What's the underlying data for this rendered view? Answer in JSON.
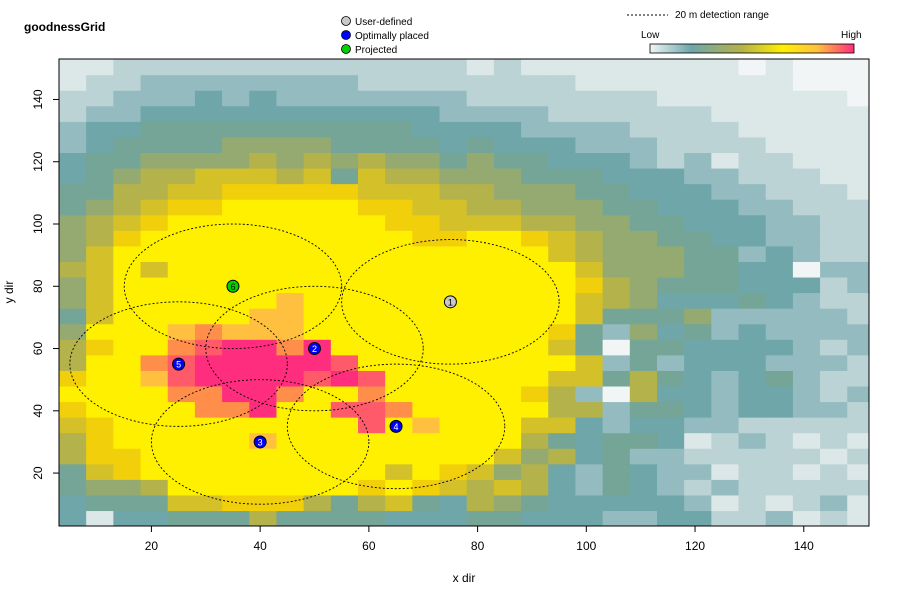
{
  "chart_data": {
    "type": "heatmap",
    "title": "goodnessGrid",
    "xlabel": "x dir",
    "ylabel": "y dir",
    "xlim": [
      3,
      152
    ],
    "ylim": [
      3,
      153
    ],
    "x_ticks": [
      20,
      40,
      60,
      80,
      100,
      120,
      140
    ],
    "y_ticks": [
      20,
      40,
      60,
      80,
      100,
      120,
      140
    ],
    "grid": false,
    "cell_size": 5,
    "heatmap": {
      "x_start": 3,
      "y_start": 3,
      "cols": 30,
      "rows": 30,
      "colors": [
        "#f1f5f5",
        "#dce7e8",
        "#bcd3d6",
        "#94bcc0",
        "#6ea6aa",
        "#75a596",
        "#95aa70",
        "#b4b24a",
        "#d4c129",
        "#f1cf0a",
        "#fff000",
        "#ffc040",
        "#ff8e4a",
        "#ff5a6a",
        "#ff2d7d"
      ],
      "values": [
        [
          4,
          1,
          4,
          4,
          5,
          5,
          5,
          7,
          5,
          5,
          5,
          5,
          4,
          4,
          4,
          5,
          5,
          4,
          4,
          4,
          3,
          3,
          4,
          4,
          2,
          2,
          3,
          1,
          2,
          1
        ],
        [
          4,
          5,
          5,
          5,
          8,
          8,
          9,
          9,
          9,
          7,
          5,
          7,
          8,
          5,
          4,
          7,
          6,
          5,
          4,
          4,
          4,
          4,
          4,
          3,
          1,
          2,
          1,
          2,
          3,
          1
        ],
        [
          5,
          6,
          6,
          7,
          10,
          10,
          10,
          10,
          10,
          10,
          10,
          9,
          10,
          9,
          8,
          7,
          8,
          7,
          4,
          3,
          5,
          4,
          3,
          2,
          3,
          2,
          2,
          2,
          2,
          2
        ],
        [
          5,
          8,
          9,
          10,
          10,
          10,
          10,
          10,
          10,
          10,
          10,
          10,
          8,
          10,
          9,
          8,
          6,
          7,
          4,
          3,
          5,
          4,
          3,
          3,
          1,
          2,
          2,
          1,
          2,
          1
        ],
        [
          7,
          9,
          9,
          10,
          10,
          10,
          10,
          10,
          10,
          10,
          10,
          10,
          10,
          10,
          10,
          10,
          8,
          6,
          7,
          4,
          5,
          3,
          3,
          2,
          2,
          2,
          2,
          2,
          1,
          2
        ],
        [
          7,
          9,
          10,
          10,
          10,
          10,
          10,
          11,
          10,
          10,
          10,
          10,
          10,
          10,
          10,
          10,
          10,
          7,
          5,
          4,
          5,
          5,
          4,
          1,
          2,
          3,
          2,
          1,
          2,
          1
        ],
        [
          8,
          9,
          10,
          10,
          10,
          10,
          10,
          10,
          10,
          10,
          10,
          13,
          10,
          11,
          10,
          10,
          10,
          8,
          8,
          4,
          3,
          4,
          4,
          3,
          3,
          2,
          2,
          2,
          2,
          2
        ],
        [
          9,
          10,
          10,
          10,
          10,
          12,
          12,
          14,
          10,
          10,
          13,
          13,
          12,
          10,
          10,
          10,
          10,
          10,
          7,
          7,
          3,
          5,
          5,
          4,
          3,
          4,
          4,
          3,
          3,
          2
        ],
        [
          10,
          10,
          10,
          10,
          12,
          12,
          14,
          14,
          12,
          10,
          10,
          12,
          10,
          10,
          10,
          10,
          10,
          9,
          7,
          3,
          0,
          7,
          4,
          4,
          3,
          4,
          4,
          3,
          2,
          3
        ],
        [
          9,
          10,
          10,
          11,
          13,
          14,
          14,
          14,
          14,
          13,
          14,
          13,
          10,
          10,
          10,
          10,
          10,
          10,
          8,
          8,
          5,
          7,
          5,
          4,
          3,
          4,
          5,
          3,
          2,
          2
        ],
        [
          7,
          10,
          10,
          12,
          13,
          14,
          14,
          14,
          14,
          14,
          13,
          10,
          10,
          10,
          10,
          10,
          10,
          10,
          10,
          8,
          3,
          5,
          3,
          4,
          4,
          4,
          3,
          3,
          3,
          2
        ],
        [
          7,
          9,
          10,
          10,
          12,
          13,
          14,
          14,
          12,
          14,
          10,
          10,
          10,
          10,
          10,
          10,
          10,
          10,
          8,
          5,
          0,
          5,
          5,
          4,
          4,
          4,
          4,
          3,
          2,
          3
        ],
        [
          6,
          10,
          10,
          10,
          11,
          12,
          11,
          11,
          11,
          10,
          10,
          10,
          10,
          10,
          10,
          10,
          10,
          10,
          9,
          5,
          3,
          6,
          4,
          5,
          3,
          4,
          3,
          3,
          3,
          3
        ],
        [
          5,
          8,
          10,
          10,
          10,
          10,
          10,
          11,
          11,
          10,
          10,
          10,
          10,
          10,
          10,
          10,
          10,
          10,
          10,
          8,
          5,
          5,
          5,
          6,
          3,
          3,
          3,
          3,
          3,
          2
        ],
        [
          6,
          8,
          10,
          10,
          10,
          10,
          10,
          10,
          11,
          10,
          10,
          10,
          10,
          10,
          10,
          10,
          10,
          10,
          10,
          8,
          7,
          6,
          4,
          4,
          4,
          5,
          4,
          3,
          2,
          2
        ],
        [
          6,
          8,
          10,
          10,
          10,
          10,
          10,
          10,
          10,
          10,
          10,
          10,
          10,
          10,
          10,
          10,
          10,
          10,
          10,
          9,
          7,
          6,
          5,
          5,
          5,
          4,
          4,
          4,
          2,
          3
        ],
        [
          7,
          8,
          10,
          8,
          10,
          10,
          10,
          10,
          10,
          10,
          10,
          10,
          10,
          10,
          10,
          10,
          10,
          10,
          10,
          8,
          6,
          6,
          6,
          5,
          5,
          4,
          4,
          0,
          3,
          3
        ],
        [
          6,
          8,
          10,
          10,
          10,
          10,
          10,
          10,
          10,
          10,
          10,
          10,
          10,
          10,
          10,
          10,
          10,
          10,
          8,
          7,
          6,
          6,
          6,
          5,
          5,
          3,
          4,
          3,
          2,
          2
        ],
        [
          6,
          7,
          9,
          10,
          10,
          10,
          10,
          10,
          10,
          10,
          10,
          10,
          10,
          9,
          9,
          10,
          10,
          9,
          8,
          7,
          6,
          6,
          5,
          5,
          4,
          4,
          3,
          3,
          2,
          2
        ],
        [
          6,
          7,
          8,
          9,
          10,
          10,
          10,
          10,
          10,
          10,
          10,
          10,
          9,
          9,
          8,
          8,
          8,
          7,
          7,
          6,
          6,
          5,
          5,
          4,
          4,
          4,
          3,
          3,
          2,
          2
        ],
        [
          5,
          6,
          7,
          8,
          9,
          9,
          10,
          10,
          10,
          10,
          10,
          9,
          9,
          8,
          8,
          7,
          7,
          6,
          6,
          6,
          5,
          5,
          4,
          4,
          4,
          3,
          3,
          2,
          2,
          2
        ],
        [
          5,
          5,
          7,
          7,
          8,
          8,
          9,
          9,
          9,
          9,
          9,
          8,
          8,
          8,
          7,
          7,
          6,
          6,
          6,
          5,
          5,
          4,
          4,
          4,
          3,
          3,
          2,
          2,
          2,
          1
        ],
        [
          4,
          5,
          6,
          7,
          7,
          8,
          8,
          8,
          7,
          8,
          5,
          8,
          7,
          7,
          6,
          6,
          6,
          5,
          5,
          5,
          4,
          4,
          4,
          3,
          3,
          2,
          2,
          2,
          1,
          1
        ],
        [
          4,
          5,
          5,
          6,
          6,
          6,
          6,
          7,
          6,
          7,
          6,
          7,
          6,
          6,
          5,
          6,
          5,
          5,
          4,
          4,
          4,
          3,
          2,
          3,
          1,
          2,
          2,
          1,
          1,
          1
        ],
        [
          3,
          4,
          5,
          5,
          5,
          5,
          6,
          6,
          6,
          6,
          5,
          5,
          5,
          5,
          4,
          5,
          4,
          4,
          4,
          3,
          3,
          3,
          2,
          2,
          2,
          2,
          1,
          1,
          1,
          1
        ],
        [
          3,
          4,
          4,
          5,
          5,
          5,
          5,
          5,
          5,
          5,
          5,
          5,
          5,
          4,
          4,
          4,
          4,
          3,
          3,
          3,
          3,
          2,
          2,
          2,
          2,
          1,
          1,
          1,
          1,
          1
        ],
        [
          2,
          3,
          3,
          4,
          4,
          4,
          4,
          4,
          4,
          4,
          4,
          4,
          4,
          4,
          3,
          3,
          3,
          3,
          2,
          2,
          2,
          2,
          2,
          2,
          1,
          1,
          1,
          1,
          1,
          1
        ],
        [
          2,
          2,
          3,
          3,
          3,
          4,
          3,
          4,
          3,
          3,
          3,
          3,
          3,
          3,
          3,
          2,
          2,
          2,
          2,
          2,
          2,
          2,
          1,
          1,
          1,
          1,
          1,
          1,
          1,
          0
        ],
        [
          1,
          2,
          2,
          3,
          3,
          3,
          3,
          3,
          3,
          3,
          3,
          2,
          2,
          2,
          2,
          2,
          2,
          2,
          2,
          1,
          1,
          1,
          1,
          1,
          1,
          1,
          1,
          0,
          0,
          0
        ],
        [
          1,
          1,
          2,
          2,
          2,
          2,
          2,
          2,
          2,
          2,
          2,
          2,
          2,
          2,
          2,
          1,
          2,
          1,
          1,
          1,
          1,
          1,
          1,
          1,
          1,
          0,
          1,
          0,
          0,
          0
        ]
      ]
    },
    "detection_range_m": 20,
    "circles": [
      {
        "label": "1",
        "x": 75,
        "y": 75,
        "type": "User-defined"
      },
      {
        "label": "2",
        "x": 50,
        "y": 60,
        "type": "Optimally placed"
      },
      {
        "label": "3",
        "x": 40,
        "y": 30,
        "type": "Optimally placed"
      },
      {
        "label": "4",
        "x": 65,
        "y": 35,
        "type": "Optimally placed"
      },
      {
        "label": "5",
        "x": 25,
        "y": 55,
        "type": "Optimally placed"
      },
      {
        "label": "6",
        "x": 35,
        "y": 80,
        "type": "Projected"
      }
    ],
    "legend": {
      "entries": [
        {
          "label": "User-defined",
          "color": "#c8c8c8"
        },
        {
          "label": "Optimally placed",
          "color": "#0000ff"
        },
        {
          "label": "Projected",
          "color": "#00d000"
        }
      ],
      "range_label": "20 m detection range",
      "colorbar_low": "Low",
      "colorbar_high": "High"
    }
  }
}
